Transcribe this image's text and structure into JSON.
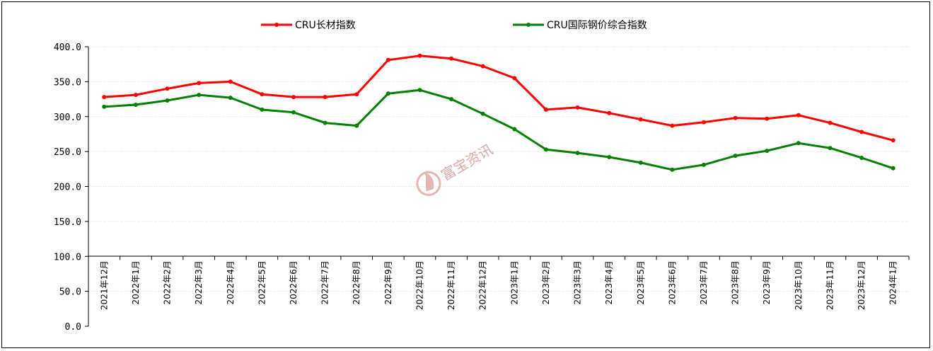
{
  "chart_data": {
    "type": "line",
    "categories": [
      "2021年12月",
      "2022年1月",
      "2022年2月",
      "2022年3月",
      "2022年4月",
      "2022年5月",
      "2022年6月",
      "2022年7月",
      "2022年8月",
      "2022年9月",
      "2022年10月",
      "2022年11月",
      "2022年12月",
      "2023年1月",
      "2023年2月",
      "2023年3月",
      "2023年4月",
      "2023年5月",
      "2023年6月",
      "2023年7月",
      "2023年8月",
      "2023年9月",
      "2023年10月",
      "2023年11月",
      "2023年12月",
      "2024年1月"
    ],
    "series": [
      {
        "name": "CRU长材指数",
        "color": "#ff0000",
        "values": [
          328,
          331,
          340,
          348,
          350,
          332,
          328,
          328,
          332,
          381,
          387,
          383,
          372,
          355,
          310,
          313,
          305,
          296,
          287,
          292,
          298,
          297,
          302,
          291,
          278,
          266
        ]
      },
      {
        "name": "CRU国际钢价综合指数",
        "color": "#008000",
        "values": [
          314,
          317,
          323,
          331,
          327,
          310,
          306,
          291,
          287,
          333,
          338,
          325,
          304,
          282,
          253,
          248,
          242,
          234,
          224,
          231,
          244,
          251,
          262,
          255,
          241,
          226
        ]
      }
    ],
    "y_ticks": [
      "0.0",
      "50.0",
      "100.0",
      "150.0",
      "200.0",
      "250.0",
      "300.0",
      "350.0",
      "400.0"
    ],
    "ylim": [
      0,
      400
    ],
    "grid": true,
    "legend_position": "top"
  },
  "watermark": {
    "text": "富宝资讯",
    "color": "#d9a9a9"
  }
}
